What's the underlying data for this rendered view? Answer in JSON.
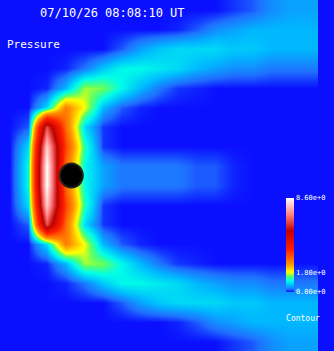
{
  "chart_data": {
    "type": "heatmap",
    "title": "07/10/26 08:08:10 UT",
    "annotations": [
      "Pressure"
    ],
    "cells": [
      [
        0,
        0,
        0,
        0,
        0,
        0,
        0,
        0,
        0,
        0,
        0,
        0,
        0.1,
        0.2,
        0.4,
        0.5,
        0.5
      ],
      [
        0,
        0,
        0,
        0,
        0,
        0,
        0,
        0,
        0,
        0.05,
        0.2,
        0.4,
        0.5,
        0.6,
        0.6,
        0.6,
        0.6
      ],
      [
        0,
        0,
        0,
        0,
        0,
        0,
        0.2,
        0.5,
        0.7,
        0.8,
        0.8,
        0.8,
        0.7,
        0.7,
        0.6,
        0.6,
        0.6
      ],
      [
        0,
        0,
        0,
        0.05,
        0.3,
        0.7,
        1.0,
        1.0,
        0.9,
        0.8,
        0.6,
        0.5,
        0.4,
        0.4,
        0.3,
        0.3,
        0.3
      ],
      [
        0,
        0,
        0.05,
        0.6,
        1.6,
        1.5,
        1.0,
        0.6,
        0.3,
        0.1,
        0.05,
        0,
        0,
        0,
        0,
        0,
        0
      ],
      [
        0,
        0,
        0.8,
        2.8,
        1.8,
        0.6,
        0.2,
        0.05,
        0,
        0,
        0,
        0,
        0,
        0,
        0,
        0,
        0
      ],
      [
        0,
        0.2,
        6.5,
        3.0,
        0.8,
        0.1,
        0,
        0,
        0,
        0,
        0,
        0,
        0,
        0,
        0,
        0,
        0
      ],
      [
        0,
        0.8,
        8.0,
        3.5,
        1.2,
        0.1,
        0,
        0,
        0,
        0,
        0,
        0,
        0,
        0,
        0,
        0,
        0
      ],
      [
        0,
        1.0,
        8.6,
        3.0,
        1.0,
        0.5,
        0.3,
        0.3,
        0.3,
        0.3,
        0.2,
        0.2,
        0.05,
        0,
        0,
        0,
        0
      ],
      [
        0,
        1.0,
        8.6,
        3.0,
        1.0,
        0.5,
        0.3,
        0.3,
        0.3,
        0.3,
        0.2,
        0.2,
        0.05,
        0,
        0,
        0,
        0
      ],
      [
        0,
        0.8,
        8.0,
        3.5,
        1.2,
        0.1,
        0,
        0,
        0,
        0,
        0,
        0,
        0,
        0,
        0,
        0,
        0
      ],
      [
        0,
        0.2,
        6.5,
        3.0,
        0.8,
        0.1,
        0,
        0,
        0,
        0,
        0,
        0,
        0,
        0,
        0,
        0,
        0
      ],
      [
        0,
        0,
        0.8,
        2.8,
        1.8,
        0.6,
        0.2,
        0.05,
        0,
        0,
        0,
        0,
        0,
        0,
        0,
        0,
        0
      ],
      [
        0,
        0,
        0.05,
        0.6,
        1.6,
        1.5,
        1.0,
        0.6,
        0.3,
        0.1,
        0.05,
        0,
        0,
        0,
        0,
        0,
        0
      ],
      [
        0,
        0,
        0,
        0.05,
        0.3,
        0.7,
        1.0,
        1.0,
        0.9,
        0.8,
        0.6,
        0.5,
        0.4,
        0.4,
        0.3,
        0.3,
        0.3
      ],
      [
        0,
        0,
        0,
        0,
        0,
        0,
        0.2,
        0.5,
        0.7,
        0.8,
        0.8,
        0.8,
        0.7,
        0.7,
        0.6,
        0.6,
        0.6
      ],
      [
        0,
        0,
        0,
        0,
        0,
        0,
        0,
        0,
        0,
        0.05,
        0.2,
        0.4,
        0.5,
        0.6,
        0.6,
        0.6,
        0.6
      ],
      [
        0,
        0,
        0,
        0,
        0,
        0,
        0,
        0,
        0,
        0,
        0,
        0,
        0.1,
        0.2,
        0.4,
        0.5,
        0.5
      ]
    ],
    "zlim": [
      0,
      8.6
    ],
    "zticks": [
      {
        "value": 8.6,
        "label": "8.60e+0"
      },
      {
        "value": 1.8,
        "label": "1.80e+0"
      },
      {
        "value": 0,
        "label": "0.00e+0"
      }
    ],
    "colorbar_title": "Contour",
    "tick_labels": false,
    "grid": false
  }
}
